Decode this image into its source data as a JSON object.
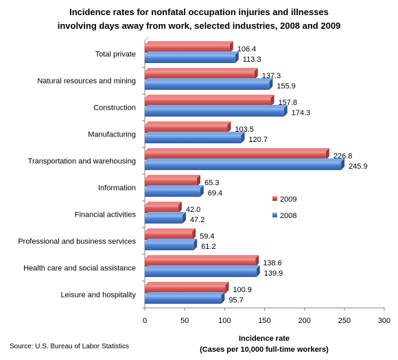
{
  "title_line1": "Incidence rates for nonfatal occupation injuries and illnesses",
  "title_line2": "involving days away from work, selected industries, 2008 and 2009",
  "source": "Source: U.S. Bureau of Labor Statistics",
  "colors": {
    "s2009": "#d9534f",
    "s2009_light": "#f2a2a0",
    "s2008": "#4a7fd0",
    "s2008_light": "#9ec0ee"
  },
  "chart_data": {
    "type": "bar",
    "orientation": "horizontal",
    "categories": [
      "Total private",
      "Natural resources and mining",
      "Construction",
      "Manufacturing",
      "Transportation and warehousing",
      "Information",
      "Financial activities",
      "Professional and business services",
      "Health care and social assistance",
      "Leisure and hospitality"
    ],
    "series": [
      {
        "name": "2009",
        "values": [
          106.4,
          137.3,
          157.8,
          103.5,
          226.8,
          65.3,
          42.0,
          59.4,
          138.6,
          100.9
        ],
        "labels": [
          "106.4",
          "137.3",
          "157.8",
          "103.5",
          "226.8",
          "65.3",
          "42.0",
          "59.4",
          "138.6",
          "100.9"
        ]
      },
      {
        "name": "2008",
        "values": [
          113.3,
          155.9,
          174.3,
          120.7,
          245.9,
          69.4,
          47.2,
          61.2,
          139.9,
          95.7
        ],
        "labels": [
          "113.3",
          "155.9",
          "174.3",
          "120.7",
          "245.9",
          "69.4",
          "47.2",
          "61.2",
          "139.9",
          "95.7"
        ]
      }
    ],
    "xlim": [
      0,
      300
    ],
    "xticks": [
      "0",
      "50",
      "100",
      "150",
      "200",
      "250",
      "300"
    ],
    "xlabel_line1": "Incidence rate",
    "xlabel_line2": "(Cases per 10,000 full-time workers)",
    "legend_position": "right-center",
    "grid": false
  }
}
